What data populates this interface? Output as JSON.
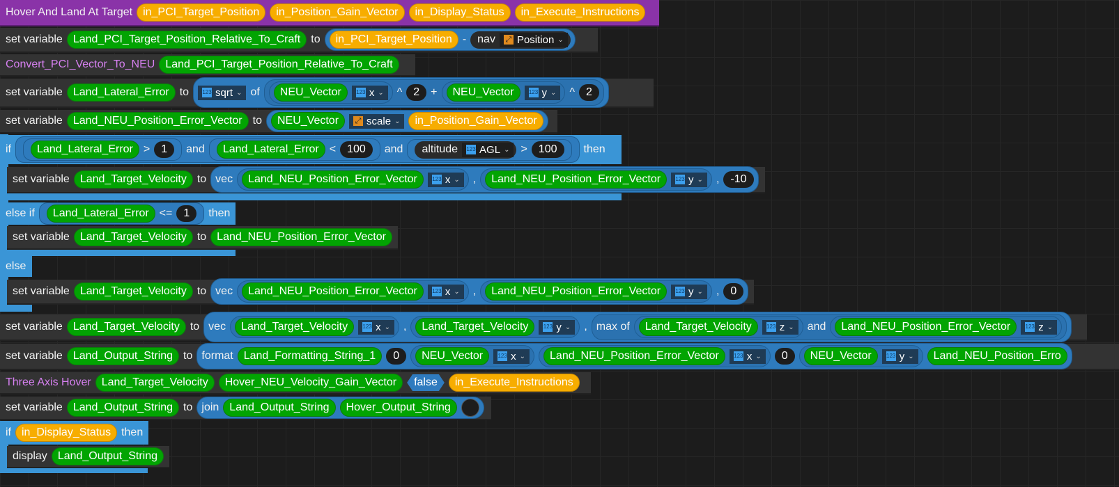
{
  "colors": {
    "event": "#8a33a8",
    "statement": "#333333",
    "variable": "#02a402",
    "parameter": "#f7ad00",
    "control": "#3a95d6",
    "expression": "#2e7bbd"
  },
  "rows": [
    {
      "kind": "event",
      "tokens": [
        {
          "t": "txt",
          "v": "Hover And Land At Target"
        },
        {
          "t": "par",
          "v": "in_PCI_Target_Position"
        },
        {
          "t": "par",
          "v": "in_Position_Gain_Vector"
        },
        {
          "t": "par",
          "v": "in_Display_Status"
        },
        {
          "t": "par",
          "v": "in_Execute_Instructions"
        }
      ]
    },
    {
      "kind": "stmt",
      "tokens": [
        {
          "t": "txt",
          "v": "set variable"
        },
        {
          "t": "var",
          "v": "Land_PCI_Target_Position_Relative_To_Craft"
        },
        {
          "t": "txt",
          "v": "to"
        },
        {
          "t": "expr",
          "items": [
            {
              "t": "par",
              "v": "in_PCI_Target_Position"
            },
            {
              "t": "txt",
              "v": "-"
            },
            {
              "t": "dark",
              "items": [
                {
                  "t": "txt",
                  "v": "nav"
                },
                {
                  "t": "dd",
                  "icon": "vector-icon",
                  "v": "Position"
                }
              ]
            }
          ]
        }
      ]
    },
    {
      "kind": "stmt",
      "tokens": [
        {
          "t": "ptxt",
          "v": "Convert_PCI_Vector_To_NEU"
        },
        {
          "t": "var",
          "v": "Land_PCI_Target_Position_Relative_To_Craft"
        }
      ]
    },
    {
      "kind": "stmt",
      "tokens": [
        {
          "t": "txt",
          "v": "set variable"
        },
        {
          "t": "var",
          "v": "Land_Lateral_Error"
        },
        {
          "t": "txt",
          "v": "to"
        },
        {
          "t": "expr",
          "items": [
            {
              "t": "dd",
              "icon": "num-icon",
              "v": "sqrt"
            },
            {
              "t": "txt",
              "v": "of"
            },
            {
              "t": "expr",
              "items": [
                {
                  "t": "expr",
                  "items": [
                    {
                      "t": "var",
                      "v": "NEU_Vector"
                    },
                    {
                      "t": "dd",
                      "icon": "num-icon",
                      "v": "x"
                    }
                  ]
                },
                {
                  "t": "txt",
                  "v": "^"
                },
                {
                  "t": "num",
                  "v": "2"
                },
                {
                  "t": "txt",
                  "v": "+"
                },
                {
                  "t": "expr",
                  "items": [
                    {
                      "t": "var",
                      "v": "NEU_Vector"
                    },
                    {
                      "t": "dd",
                      "icon": "num-icon",
                      "v": "y"
                    }
                  ]
                },
                {
                  "t": "txt",
                  "v": "^"
                },
                {
                  "t": "num",
                  "v": "2"
                }
              ]
            }
          ]
        }
      ]
    },
    {
      "kind": "stmt",
      "tokens": [
        {
          "t": "txt",
          "v": "set variable"
        },
        {
          "t": "var",
          "v": "Land_NEU_Position_Error_Vector"
        },
        {
          "t": "txt",
          "v": "to"
        },
        {
          "t": "expr",
          "items": [
            {
              "t": "var",
              "v": "NEU_Vector"
            },
            {
              "t": "dd",
              "icon": "vector-icon",
              "v": "scale"
            },
            {
              "t": "par",
              "v": "in_Position_Gain_Vector"
            }
          ]
        }
      ]
    },
    {
      "kind": "ctrl",
      "tokens": [
        {
          "t": "txt",
          "v": "if"
        },
        {
          "t": "cond",
          "items": [
            {
              "t": "cond",
              "items": [
                {
                  "t": "var",
                  "v": "Land_Lateral_Error"
                },
                {
                  "t": "txt",
                  "v": ">"
                },
                {
                  "t": "num",
                  "v": "1"
                }
              ]
            },
            {
              "t": "txt",
              "v": "and"
            },
            {
              "t": "cond",
              "items": [
                {
                  "t": "var",
                  "v": "Land_Lateral_Error"
                },
                {
                  "t": "txt",
                  "v": "<"
                },
                {
                  "t": "num",
                  "v": "100"
                }
              ]
            },
            {
              "t": "txt",
              "v": "and"
            },
            {
              "t": "cond",
              "items": [
                {
                  "t": "dark",
                  "items": [
                    {
                      "t": "txt",
                      "v": "altitude"
                    },
                    {
                      "t": "dd",
                      "icon": "num-icon",
                      "v": "AGL"
                    }
                  ]
                },
                {
                  "t": "txt",
                  "v": ">"
                },
                {
                  "t": "num",
                  "v": "100"
                }
              ]
            }
          ]
        },
        {
          "t": "txt",
          "v": "then"
        }
      ]
    },
    {
      "kind": "stmt",
      "tokens": [
        {
          "t": "txt",
          "v": "set variable"
        },
        {
          "t": "var",
          "v": "Land_Target_Velocity"
        },
        {
          "t": "txt",
          "v": "to"
        },
        {
          "t": "expr",
          "items": [
            {
              "t": "txt",
              "v": "vec"
            },
            {
              "t": "expr",
              "items": [
                {
                  "t": "var",
                  "v": "Land_NEU_Position_Error_Vector"
                },
                {
                  "t": "dd",
                  "icon": "num-icon",
                  "v": "x"
                }
              ]
            },
            {
              "t": "txt",
              "v": ","
            },
            {
              "t": "expr",
              "items": [
                {
                  "t": "var",
                  "v": "Land_NEU_Position_Error_Vector"
                },
                {
                  "t": "dd",
                  "icon": "num-icon",
                  "v": "y"
                }
              ]
            },
            {
              "t": "txt",
              "v": ","
            },
            {
              "t": "num",
              "v": "-10"
            }
          ]
        }
      ]
    },
    {
      "kind": "ctrl",
      "tokens": [
        {
          "t": "txt",
          "v": "else if"
        },
        {
          "t": "cond",
          "items": [
            {
              "t": "var",
              "v": "Land_Lateral_Error"
            },
            {
              "t": "txt",
              "v": "<="
            },
            {
              "t": "num",
              "v": "1"
            }
          ]
        },
        {
          "t": "txt",
          "v": "then"
        }
      ]
    },
    {
      "kind": "stmt",
      "tokens": [
        {
          "t": "txt",
          "v": "set variable"
        },
        {
          "t": "var",
          "v": "Land_Target_Velocity"
        },
        {
          "t": "txt",
          "v": "to"
        },
        {
          "t": "var",
          "v": "Land_NEU_Position_Error_Vector"
        }
      ]
    },
    {
      "kind": "ctrl",
      "tokens": [
        {
          "t": "txt",
          "v": "else"
        }
      ]
    },
    {
      "kind": "stmt",
      "tokens": [
        {
          "t": "txt",
          "v": "set variable"
        },
        {
          "t": "var",
          "v": "Land_Target_Velocity"
        },
        {
          "t": "txt",
          "v": "to"
        },
        {
          "t": "expr",
          "items": [
            {
              "t": "txt",
              "v": "vec"
            },
            {
              "t": "expr",
              "items": [
                {
                  "t": "var",
                  "v": "Land_NEU_Position_Error_Vector"
                },
                {
                  "t": "dd",
                  "icon": "num-icon",
                  "v": "x"
                }
              ]
            },
            {
              "t": "txt",
              "v": ","
            },
            {
              "t": "expr",
              "items": [
                {
                  "t": "var",
                  "v": "Land_NEU_Position_Error_Vector"
                },
                {
                  "t": "dd",
                  "icon": "num-icon",
                  "v": "y"
                }
              ]
            },
            {
              "t": "txt",
              "v": ","
            },
            {
              "t": "num",
              "v": "0"
            }
          ]
        }
      ]
    },
    {
      "kind": "stmt",
      "tokens": [
        {
          "t": "txt",
          "v": "set variable"
        },
        {
          "t": "var",
          "v": "Land_Target_Velocity"
        },
        {
          "t": "txt",
          "v": "to"
        },
        {
          "t": "expr",
          "items": [
            {
              "t": "txt",
              "v": "vec"
            },
            {
              "t": "expr",
              "items": [
                {
                  "t": "var",
                  "v": "Land_Target_Velocity"
                },
                {
                  "t": "dd",
                  "icon": "num-icon",
                  "v": "x"
                }
              ]
            },
            {
              "t": "txt",
              "v": ","
            },
            {
              "t": "expr",
              "items": [
                {
                  "t": "var",
                  "v": "Land_Target_Velocity"
                },
                {
                  "t": "dd",
                  "icon": "num-icon",
                  "v": "y"
                }
              ]
            },
            {
              "t": "txt",
              "v": ","
            },
            {
              "t": "expr",
              "items": [
                {
                  "t": "txt",
                  "v": "max of"
                },
                {
                  "t": "expr",
                  "items": [
                    {
                      "t": "var",
                      "v": "Land_Target_Velocity"
                    },
                    {
                      "t": "dd",
                      "icon": "num-icon",
                      "v": "z"
                    }
                  ]
                },
                {
                  "t": "txt",
                  "v": "and"
                },
                {
                  "t": "expr",
                  "items": [
                    {
                      "t": "var",
                      "v": "Land_NEU_Position_Error_Vector"
                    },
                    {
                      "t": "dd",
                      "icon": "num-icon",
                      "v": "z"
                    }
                  ]
                }
              ]
            }
          ]
        }
      ]
    },
    {
      "kind": "stmt",
      "tokens": [
        {
          "t": "txt",
          "v": "set variable"
        },
        {
          "t": "var",
          "v": "Land_Output_String"
        },
        {
          "t": "txt",
          "v": "to"
        },
        {
          "t": "expr",
          "items": [
            {
              "t": "txt",
              "v": "format"
            },
            {
              "t": "var",
              "v": "Land_Formatting_String_1"
            },
            {
              "t": "num",
              "v": "0"
            },
            {
              "t": "expr",
              "items": [
                {
                  "t": "var",
                  "v": "NEU_Vector"
                },
                {
                  "t": "dd",
                  "icon": "num-icon",
                  "v": "x"
                }
              ]
            },
            {
              "t": "expr",
              "items": [
                {
                  "t": "var",
                  "v": "Land_NEU_Position_Error_Vector"
                },
                {
                  "t": "dd",
                  "icon": "num-icon",
                  "v": "x"
                }
              ]
            },
            {
              "t": "num",
              "v": "0"
            },
            {
              "t": "expr",
              "items": [
                {
                  "t": "var",
                  "v": "NEU_Vector"
                },
                {
                  "t": "dd",
                  "icon": "num-icon",
                  "v": "y"
                }
              ]
            },
            {
              "t": "var",
              "v": "Land_NEU_Position_Erro"
            }
          ]
        }
      ]
    },
    {
      "kind": "stmt",
      "tokens": [
        {
          "t": "ptxt",
          "v": "Three Axis Hover"
        },
        {
          "t": "var",
          "v": "Land_Target_Velocity"
        },
        {
          "t": "var",
          "v": "Hover_NEU_Velocity_Gain_Vector"
        },
        {
          "t": "bool",
          "v": "false"
        },
        {
          "t": "par",
          "v": "in_Execute_Instructions"
        }
      ]
    },
    {
      "kind": "stmt",
      "tokens": [
        {
          "t": "txt",
          "v": "set variable"
        },
        {
          "t": "var",
          "v": "Land_Output_String"
        },
        {
          "t": "txt",
          "v": "to"
        },
        {
          "t": "expr",
          "items": [
            {
              "t": "txt",
              "v": "join"
            },
            {
              "t": "var",
              "v": "Land_Output_String"
            },
            {
              "t": "var",
              "v": "Hover_Output_String"
            },
            {
              "t": "empty"
            }
          ]
        }
      ]
    },
    {
      "kind": "ctrl",
      "tokens": [
        {
          "t": "txt",
          "v": "if"
        },
        {
          "t": "par",
          "v": "in_Display_Status"
        },
        {
          "t": "txt",
          "v": "then"
        }
      ]
    },
    {
      "kind": "stmt",
      "tokens": [
        {
          "t": "txt",
          "v": "display"
        },
        {
          "t": "var",
          "v": "Land_Output_String"
        }
      ]
    }
  ]
}
